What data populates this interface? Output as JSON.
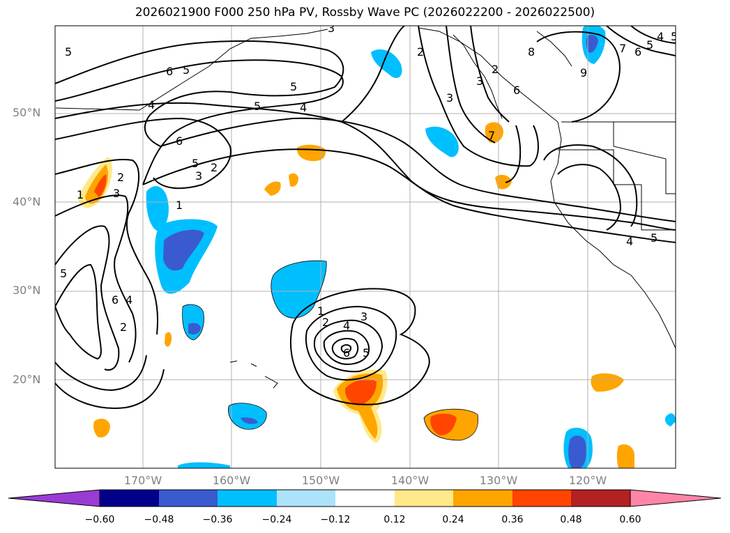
{
  "title": "2026021900 F000 250 hPa PV, Rossby Wave PC (2026022200 - 2026022500)",
  "lat_labels": [
    "50°N",
    "40°N",
    "30°N",
    "20°N"
  ],
  "lon_labels": [
    "170°W",
    "160°W",
    "150°W",
    "140°W",
    "130°W",
    "120°W"
  ],
  "colorbar": {
    "ticks": [
      "−0.60",
      "−0.48",
      "−0.36",
      "−0.24",
      "−0.12",
      "0.12",
      "0.24",
      "0.36",
      "0.48",
      "0.60"
    ],
    "colors": [
      "#9a3bd4",
      "#00008b",
      "#3a5bd0",
      "#00bfff",
      "#ade2fb",
      "#ffffff",
      "#ffe98a",
      "#ffa500",
      "#ff4500",
      "#b22222",
      "#ff85a8"
    ]
  },
  "contour_labels": [
    "5",
    "6",
    "5",
    "3",
    "2",
    "5",
    "4",
    "5",
    "4",
    "6",
    "5",
    "3",
    "2",
    "1",
    "1",
    "2",
    "3",
    "2",
    "5",
    "6",
    "4",
    "1",
    "2",
    "4",
    "3",
    "5",
    "6",
    "3",
    "8",
    "7",
    "6",
    "5",
    "4",
    "5",
    "2",
    "3",
    "7",
    "6",
    "9",
    "4",
    "5"
  ]
}
